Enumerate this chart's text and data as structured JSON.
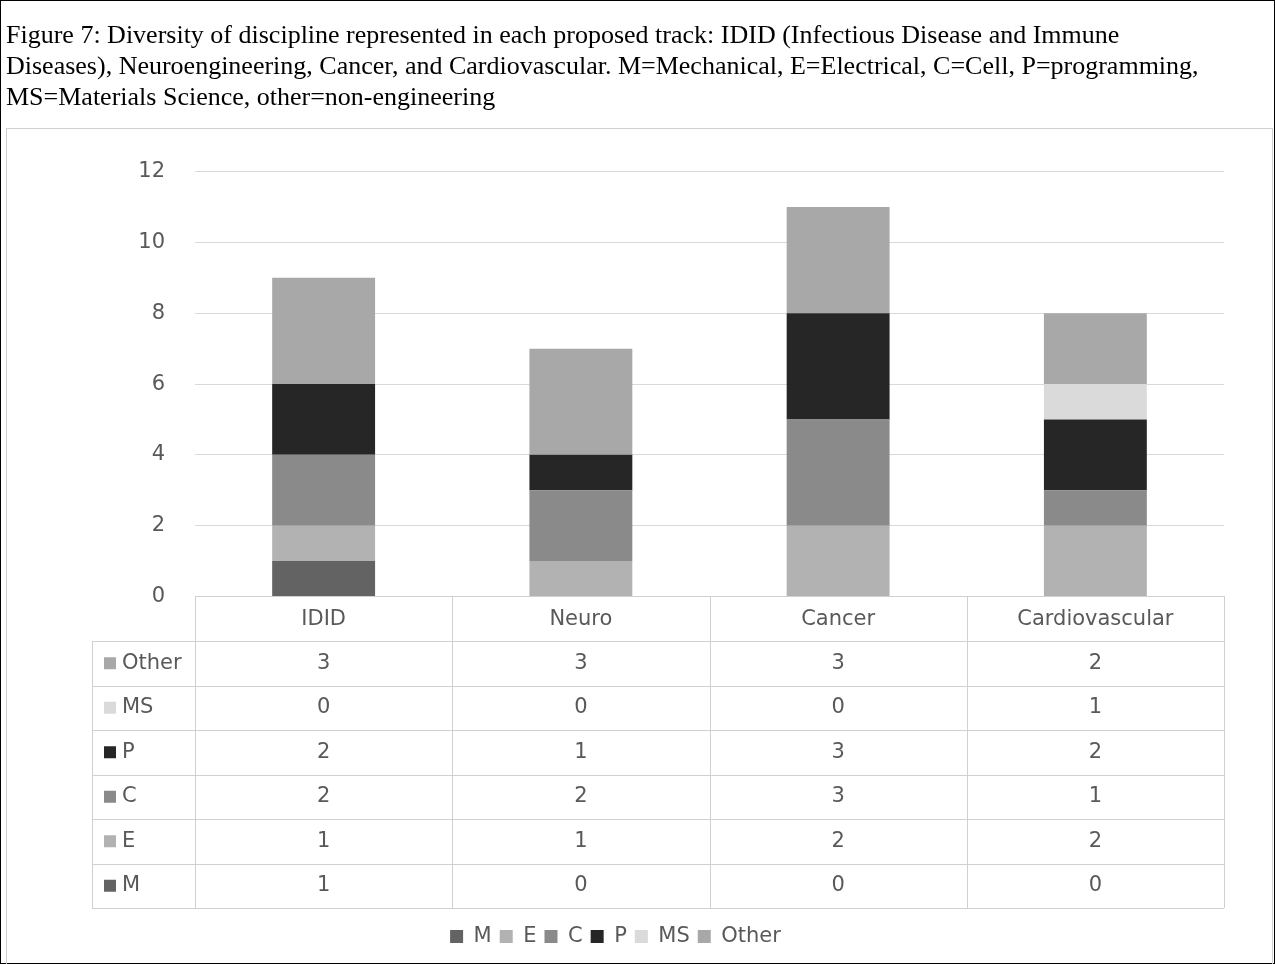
{
  "chart_data": {
    "type": "bar",
    "title": "Figure 7: Diversity of discipline represented in each proposed track: IDID (Infectious Disease and Immune Diseases), Neuroengineering, Cancer, and Cardiovascular. M=Mechanical, E=Electrical, C=Cell, P=programming, MS=Materials Science, other=non-engineering",
    "categories": [
      "IDID",
      "Neuro",
      "Cancer",
      "Cardiovascular"
    ],
    "stacked": true,
    "series": [
      {
        "name": "M",
        "color": "#636363",
        "values": [
          1,
          0,
          0,
          0
        ]
      },
      {
        "name": "E",
        "color": "#b2b2b2",
        "values": [
          1,
          1,
          2,
          2
        ]
      },
      {
        "name": "C",
        "color": "#8a8a8a",
        "values": [
          2,
          2,
          3,
          1
        ]
      },
      {
        "name": "P",
        "color": "#262626",
        "values": [
          2,
          1,
          3,
          2
        ]
      },
      {
        "name": "MS",
        "color": "#dadada",
        "values": [
          0,
          0,
          0,
          1
        ]
      },
      {
        "name": "Other",
        "color": "#a8a8a8",
        "values": [
          3,
          3,
          3,
          2
        ]
      }
    ],
    "ylim": [
      0,
      12
    ],
    "yticks": [
      0,
      2,
      4,
      6,
      8,
      10,
      12
    ],
    "grid": "y",
    "legend": "bottom",
    "data_labels": true
  }
}
